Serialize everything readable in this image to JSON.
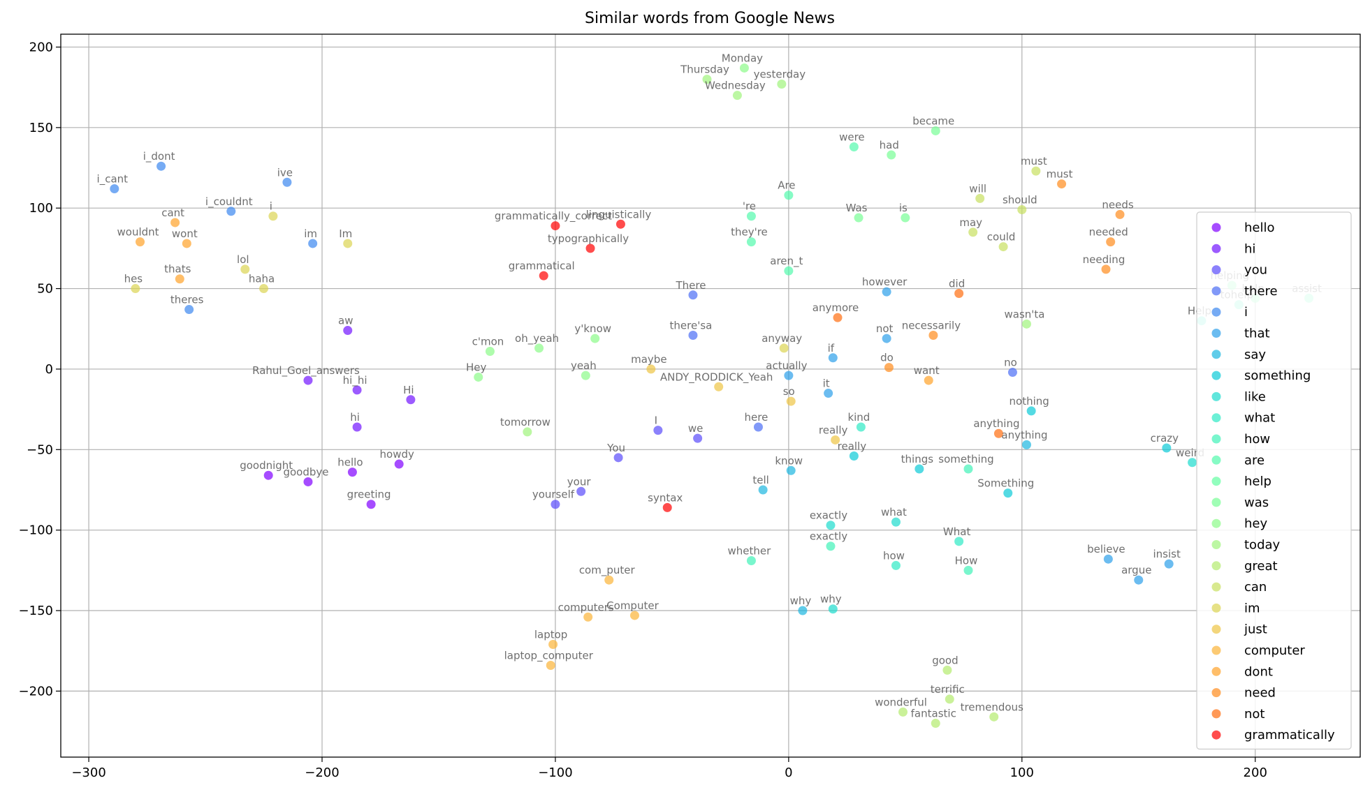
{
  "chart_data": {
    "type": "scatter",
    "title": "Similar words from Google News",
    "xlabel": "",
    "ylabel": "",
    "xlim": [
      -312,
      245
    ],
    "ylim": [
      -241,
      208
    ],
    "xticks": [
      -300,
      -200,
      -100,
      0,
      100,
      200
    ],
    "yticks": [
      -200,
      -150,
      -100,
      -50,
      0,
      50,
      100,
      150,
      200
    ],
    "xtick_labels": [
      "−300",
      "−200",
      "−100",
      "0",
      "100",
      "200"
    ],
    "ytick_labels": [
      "−200",
      "−150",
      "−100",
      "−50",
      "0",
      "50",
      "100",
      "150",
      "200"
    ],
    "grid": true,
    "legend_position": "right",
    "series": [
      {
        "name": "hello",
        "color": "#8000ff",
        "points": [
          {
            "x": -223,
            "y": -66,
            "label": "goodnight"
          },
          {
            "x": -206,
            "y": -70,
            "label": "goodbye"
          },
          {
            "x": -187,
            "y": -64,
            "label": "hello"
          },
          {
            "x": -179,
            "y": -84,
            "label": "greeting"
          },
          {
            "x": -167,
            "y": -59,
            "label": "howdy"
          }
        ]
      },
      {
        "name": "hi",
        "color": "#7216ff",
        "points": [
          {
            "x": -189,
            "y": 24,
            "label": "aw"
          },
          {
            "x": -206,
            "y": -7,
            "label": "Rahul_Goel_answers"
          },
          {
            "x": -185,
            "y": -13,
            "label": "hi_hi"
          },
          {
            "x": -162,
            "y": -19,
            "label": "Hi"
          },
          {
            "x": -185,
            "y": -36,
            "label": "hi"
          }
        ]
      },
      {
        "name": "you",
        "color": "#5a4cfb",
        "points": [
          {
            "x": -56,
            "y": -38,
            "label": "I"
          },
          {
            "x": -39,
            "y": -43,
            "label": "we"
          },
          {
            "x": -73,
            "y": -55,
            "label": "You"
          },
          {
            "x": -89,
            "y": -76,
            "label": "your"
          },
          {
            "x": -100,
            "y": -84,
            "label": "yourself"
          }
        ]
      },
      {
        "name": "there",
        "color": "#4c6df5",
        "points": [
          {
            "x": -41,
            "y": 46,
            "label": "There"
          },
          {
            "x": -41,
            "y": 21,
            "label": "there'sa"
          },
          {
            "x": -13,
            "y": -36,
            "label": "here"
          },
          {
            "x": 96,
            "y": -2,
            "label": "no"
          }
        ]
      },
      {
        "name": "i",
        "color": "#3c88ef",
        "points": [
          {
            "x": -289,
            "y": 112,
            "label": "i_cant"
          },
          {
            "x": -269,
            "y": 126,
            "label": "i_dont"
          },
          {
            "x": -215,
            "y": 116,
            "label": "ive"
          },
          {
            "x": -239,
            "y": 98,
            "label": "i_couldnt"
          },
          {
            "x": -204,
            "y": 78,
            "label": "im"
          },
          {
            "x": -257,
            "y": 37,
            "label": "theres"
          }
        ]
      },
      {
        "name": "that",
        "color": "#2c9fe9",
        "points": [
          {
            "x": 42,
            "y": 48,
            "label": "however"
          },
          {
            "x": 42,
            "y": 19,
            "label": "not"
          },
          {
            "x": 19,
            "y": 7,
            "label": "if"
          },
          {
            "x": 0,
            "y": -4,
            "label": "actually"
          },
          {
            "x": 17,
            "y": -15,
            "label": "it"
          },
          {
            "x": 137,
            "y": -118,
            "label": "believe"
          },
          {
            "x": 150,
            "y": -131,
            "label": "argue"
          },
          {
            "x": 163,
            "y": -121,
            "label": "insist"
          }
        ]
      },
      {
        "name": "say",
        "color": "#1cb6e0",
        "points": [
          {
            "x": 1,
            "y": -63,
            "label": "know"
          },
          {
            "x": -11,
            "y": -75,
            "label": "tell"
          },
          {
            "x": 6,
            "y": -150,
            "label": "why"
          },
          {
            "x": 102,
            "y": -47,
            "label": "anything"
          }
        ]
      },
      {
        "name": "something",
        "color": "#0ccbd7",
        "points": [
          {
            "x": 104,
            "y": -26,
            "label": "nothing"
          },
          {
            "x": 94,
            "y": -77,
            "label": "Something"
          },
          {
            "x": 56,
            "y": -62,
            "label": "things"
          },
          {
            "x": 28,
            "y": -54,
            "label": "really"
          },
          {
            "x": 162,
            "y": -49,
            "label": "crazy"
          }
        ]
      },
      {
        "name": "like",
        "color": "#1ddccd",
        "points": [
          {
            "x": 46,
            "y": -95,
            "label": "what"
          },
          {
            "x": 18,
            "y": -97,
            "label": "exactly"
          },
          {
            "x": 19,
            "y": -149,
            "label": "why"
          },
          {
            "x": 173,
            "y": -58,
            "label": "weird"
          }
        ]
      },
      {
        "name": "what",
        "color": "#2ee9c4",
        "points": [
          {
            "x": 31,
            "y": -36,
            "label": "kind"
          },
          {
            "x": 46,
            "y": -122,
            "label": "how"
          },
          {
            "x": 73,
            "y": -107,
            "label": "What"
          },
          {
            "x": 177,
            "y": 30,
            "label": "Help"
          }
        ]
      },
      {
        "name": "how",
        "color": "#40f2b8",
        "points": [
          {
            "x": 77,
            "y": -62,
            "label": "something"
          },
          {
            "x": 18,
            "y": -110,
            "label": "exactly"
          },
          {
            "x": 77,
            "y": -125,
            "label": "How"
          },
          {
            "x": -16,
            "y": -119,
            "label": "whether"
          },
          {
            "x": 193,
            "y": 40,
            "label": "tohelp"
          }
        ]
      },
      {
        "name": "are",
        "color": "#52f9ad",
        "points": [
          {
            "x": 28,
            "y": 138,
            "label": "were"
          },
          {
            "x": -16,
            "y": 95,
            "label": "'re"
          },
          {
            "x": -16,
            "y": 79,
            "label": "they're"
          },
          {
            "x": 0,
            "y": 108,
            "label": "Are"
          },
          {
            "x": 0,
            "y": 61,
            "label": "aren_t"
          },
          {
            "x": 223,
            "y": 44,
            "label": "assist"
          }
        ]
      },
      {
        "name": "help",
        "color": "#64fea2",
        "points": [
          {
            "x": 190,
            "y": 52,
            "label": "helping"
          },
          {
            "x": 200,
            "y": 44,
            "label": "help"
          }
        ]
      },
      {
        "name": "was",
        "color": "#78fe96",
        "points": [
          {
            "x": 63,
            "y": 148,
            "label": "became"
          },
          {
            "x": 44,
            "y": 133,
            "label": "had"
          },
          {
            "x": 30,
            "y": 94,
            "label": "Was"
          },
          {
            "x": 50,
            "y": 94,
            "label": "is"
          }
        ]
      },
      {
        "name": "hey",
        "color": "#8cfb89",
        "points": [
          {
            "x": -19,
            "y": 187,
            "label": "Monday"
          },
          {
            "x": -83,
            "y": 19,
            "label": "y'know"
          },
          {
            "x": -107,
            "y": 13,
            "label": "oh_yeah"
          },
          {
            "x": -128,
            "y": 11,
            "label": "c'mon"
          },
          {
            "x": -133,
            "y": -5,
            "label": "Hey"
          },
          {
            "x": -87,
            "y": -4,
            "label": "yeah"
          }
        ]
      },
      {
        "name": "today",
        "color": "#a0f47c",
        "points": [
          {
            "x": -35,
            "y": 180,
            "label": "Thursday"
          },
          {
            "x": -22,
            "y": 170,
            "label": "Wednesday"
          },
          {
            "x": -3,
            "y": 177,
            "label": "yesterday"
          },
          {
            "x": -112,
            "y": -39,
            "label": "tomorrow"
          },
          {
            "x": 102,
            "y": 28,
            "label": "wasn'ta"
          }
        ]
      },
      {
        "name": "great",
        "color": "#b4eb6e",
        "points": [
          {
            "x": 68,
            "y": -187,
            "label": "good"
          },
          {
            "x": 69,
            "y": -205,
            "label": "terrific"
          },
          {
            "x": 49,
            "y": -213,
            "label": "wonderful"
          },
          {
            "x": 63,
            "y": -220,
            "label": "fantastic"
          },
          {
            "x": 88,
            "y": -216,
            "label": "tremendous"
          }
        ]
      },
      {
        "name": "can",
        "color": "#c8e060",
        "points": [
          {
            "x": 106,
            "y": 123,
            "label": "must"
          },
          {
            "x": 82,
            "y": 106,
            "label": "will"
          },
          {
            "x": 100,
            "y": 99,
            "label": "should"
          },
          {
            "x": 79,
            "y": 85,
            "label": "may"
          },
          {
            "x": 92,
            "y": 76,
            "label": "could"
          }
        ]
      },
      {
        "name": "im",
        "color": "#dcd452",
        "points": [
          {
            "x": -221,
            "y": 95,
            "label": "i"
          },
          {
            "x": -189,
            "y": 78,
            "label": "Im"
          },
          {
            "x": -233,
            "y": 62,
            "label": "lol"
          },
          {
            "x": -225,
            "y": 50,
            "label": "haha"
          },
          {
            "x": -280,
            "y": 50,
            "label": "hes"
          },
          {
            "x": -2,
            "y": 13,
            "label": "anyway"
          }
        ]
      },
      {
        "name": "just",
        "color": "#eec545",
        "points": [
          {
            "x": -59,
            "y": 0,
            "label": "maybe"
          },
          {
            "x": -30,
            "y": -11,
            "label": "ANDY_RODDICK_Yeah"
          },
          {
            "x": 1,
            "y": -20,
            "label": "so"
          },
          {
            "x": 20,
            "y": -44,
            "label": "really"
          }
        ]
      },
      {
        "name": "computer",
        "color": "#fbb437",
        "points": [
          {
            "x": -77,
            "y": -131,
            "label": "com_puter"
          },
          {
            "x": -86,
            "y": -154,
            "label": "computers"
          },
          {
            "x": -66,
            "y": -153,
            "label": "Computer"
          },
          {
            "x": -101,
            "y": -171,
            "label": "laptop"
          },
          {
            "x": -102,
            "y": -184,
            "label": "laptop_computer"
          }
        ]
      },
      {
        "name": "dont",
        "color": "#ffa32a",
        "points": [
          {
            "x": -263,
            "y": 91,
            "label": "cant"
          },
          {
            "x": -278,
            "y": 79,
            "label": "wouldnt"
          },
          {
            "x": -258,
            "y": 78,
            "label": "wont"
          },
          {
            "x": -261,
            "y": 56,
            "label": "thats"
          },
          {
            "x": 60,
            "y": -7,
            "label": "want"
          }
        ]
      },
      {
        "name": "need",
        "color": "#ff8b1d",
        "points": [
          {
            "x": 117,
            "y": 115,
            "label": "must"
          },
          {
            "x": 142,
            "y": 96,
            "label": "needs"
          },
          {
            "x": 138,
            "y": 79,
            "label": "needed"
          },
          {
            "x": 136,
            "y": 62,
            "label": "needing"
          },
          {
            "x": 62,
            "y": 21,
            "label": "necessarily"
          },
          {
            "x": 43,
            "y": 1,
            "label": "do"
          }
        ]
      },
      {
        "name": "not",
        "color": "#ff6d10",
        "points": [
          {
            "x": 73,
            "y": 47,
            "label": "did"
          },
          {
            "x": 21,
            "y": 32,
            "label": "anymore"
          },
          {
            "x": 90,
            "y": -40,
            "label": "anything"
          }
        ]
      },
      {
        "name": "grammatically",
        "color": "#ff0000",
        "points": [
          {
            "x": -100,
            "y": 89,
            "label": "grammatically_correct"
          },
          {
            "x": -72,
            "y": 90,
            "label": "linguistically"
          },
          {
            "x": -85,
            "y": 75,
            "label": "typographically"
          },
          {
            "x": -105,
            "y": 58,
            "label": "grammatical"
          },
          {
            "x": -52,
            "y": -86,
            "label": "syntax"
          }
        ]
      }
    ]
  }
}
